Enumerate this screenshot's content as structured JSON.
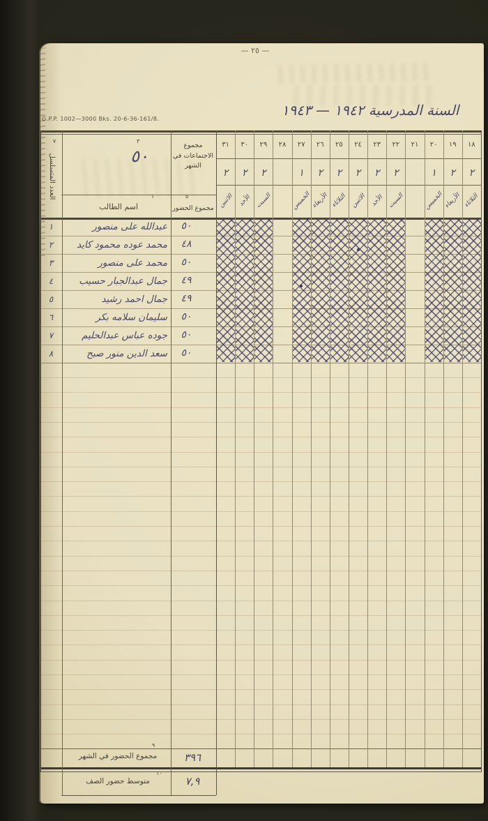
{
  "page": {
    "backdrop_color": "#26241a",
    "paper_color": "#e9e1c2",
    "print_ink_color": "#4a4336",
    "hand_ink_color": "#3e3a5e",
    "hatch_ink_color": "#3c3661",
    "page_number": "— ٢٥ —",
    "imprint": "G.P.P. 1002—3000 Bks. 20-6-36-161/8.",
    "title": "السنة المدرسية ١٩٤٢ — ١٩٤٣"
  },
  "table": {
    "serial_column": {
      "footnote": "٧",
      "label": "العدد المتسلسل"
    },
    "sessions_total": {
      "footnote": "٣",
      "value": "٥٠",
      "label": "مجموع الاجتماعات في الشهر"
    },
    "name_column": {
      "footnote": "٦",
      "label": "اسم الطالب"
    },
    "attendance_column": {
      "footnote": "٥",
      "label": "مجموع الحضور"
    },
    "days": [
      {
        "num": "٣١",
        "sessions": "٢",
        "weekday": "الاثنين",
        "hatched": true
      },
      {
        "num": "٣٠",
        "sessions": "٢",
        "weekday": "الأحد",
        "hatched": true
      },
      {
        "num": "٢٩",
        "sessions": "٢",
        "weekday": "السبت",
        "hatched": true
      },
      {
        "num": "٢٨",
        "sessions": "",
        "weekday": "",
        "hatched": false
      },
      {
        "num": "٢٧",
        "sessions": "١",
        "weekday": "الخميس",
        "hatched": true
      },
      {
        "num": "٢٦",
        "sessions": "٢",
        "weekday": "الأربعاء",
        "hatched": true
      },
      {
        "num": "٢٥",
        "sessions": "٢",
        "weekday": "الثلاثاء",
        "hatched": true
      },
      {
        "num": "٢٤",
        "sessions": "٢",
        "weekday": "الاثنين",
        "hatched": true
      },
      {
        "num": "٢٣",
        "sessions": "٢",
        "weekday": "الأحد",
        "hatched": true
      },
      {
        "num": "٢٢",
        "sessions": "٢",
        "weekday": "السبت",
        "hatched": true
      },
      {
        "num": "٢١",
        "sessions": "",
        "weekday": "",
        "hatched": false
      },
      {
        "num": "٢٠",
        "sessions": "١",
        "weekday": "الخميس",
        "hatched": true
      },
      {
        "num": "١٩",
        "sessions": "٢",
        "weekday": "الأربعاء",
        "hatched": true
      },
      {
        "num": "١٨",
        "sessions": "٢",
        "weekday": "الثلاثاء",
        "hatched": true
      }
    ],
    "students": [
      {
        "serial": "١",
        "name": "عبدالله على منصور",
        "attendance": "٥٠"
      },
      {
        "serial": "٢",
        "name": "محمد عوده محمود كايد",
        "attendance": "٤٨"
      },
      {
        "serial": "٣",
        "name": "محمد على منصور",
        "attendance": "٥٠"
      },
      {
        "serial": "٤",
        "name": "جمال عبدالجبار حسيب",
        "attendance": "٤٩"
      },
      {
        "serial": "٥",
        "name": "جمال احمد رشيد",
        "attendance": "٤٩"
      },
      {
        "serial": "٦",
        "name": "سليمان سلامه بكر",
        "attendance": "٥٠"
      },
      {
        "serial": "٧",
        "name": "جوده عباس عبدالحليم",
        "attendance": "٥٠"
      },
      {
        "serial": "٨",
        "name": "سعد الدين منور صبح",
        "attendance": "٥٠"
      }
    ],
    "absence_dots": [
      {
        "row": 2,
        "day": "٢٤"
      },
      {
        "row": 4,
        "day": "٢٧"
      }
    ],
    "totals": [
      {
        "footnote": "٩",
        "label": "مجموع الحضور في الشهر",
        "value": "٣٩٦"
      },
      {
        "footnote": "١٠",
        "label": "متوسط حضور الصف",
        "value": "٧,٩"
      }
    ]
  }
}
